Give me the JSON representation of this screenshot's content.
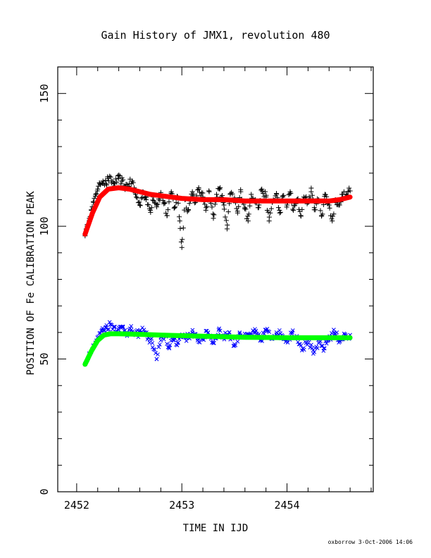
{
  "chart_data": {
    "type": "scatter",
    "title": "Gain History of JMX1, revolution 480",
    "xlabel": "TIME IN IJD",
    "ylabel": "POSITION OF Fe CALIBRATION PEAK",
    "xlim": [
      2451.82,
      2454.82
    ],
    "ylim": [
      0,
      160
    ],
    "xticks": [
      "2452",
      "2453",
      "2454"
    ],
    "yticks": [
      "0",
      "50",
      "100",
      "150"
    ],
    "grid": false,
    "legend": "none",
    "x_range": [
      2452.08,
      2454.6
    ],
    "series": [
      {
        "kind": "points",
        "marker": "+",
        "color": "#000000",
        "x": [
          2452.08,
          2452.1,
          2452.12,
          2452.14,
          2452.16,
          2452.18,
          2452.2,
          2452.22,
          2452.25,
          2452.28,
          2452.3,
          2452.33,
          2452.36,
          2452.4,
          2452.43,
          2452.46,
          2452.5,
          2452.53,
          2452.56,
          2452.6,
          2452.63,
          2452.66,
          2452.7,
          2452.73,
          2452.76,
          2452.8,
          2452.83,
          2452.86,
          2452.9,
          2452.93,
          2452.96,
          2452.98,
          2453.0,
          2453.03,
          2453.06,
          2453.1,
          2453.13,
          2453.16,
          2453.2,
          2453.23,
          2453.26,
          2453.3,
          2453.33,
          2453.36,
          2453.4,
          2453.43,
          2453.46,
          2453.5,
          2453.53,
          2453.56,
          2453.6,
          2453.63,
          2453.66,
          2453.7,
          2453.73,
          2453.76,
          2453.8,
          2453.83,
          2453.86,
          2453.9,
          2453.93,
          2453.96,
          2454.0,
          2454.03,
          2454.06,
          2454.1,
          2454.13,
          2454.16,
          2454.2,
          2454.23,
          2454.26,
          2454.3,
          2454.33,
          2454.36,
          2454.4,
          2454.43,
          2454.46,
          2454.5,
          2454.53,
          2454.56,
          2454.58
        ],
        "y": [
          97,
          100,
          103,
          106,
          109,
          112,
          114,
          116,
          117,
          116,
          118,
          117,
          116,
          118,
          117,
          115,
          116,
          117,
          112,
          108,
          113,
          110,
          106,
          111,
          108,
          112,
          109,
          104,
          113,
          107,
          111,
          102,
          92,
          110,
          106,
          113,
          109,
          114,
          111,
          107,
          113,
          103,
          112,
          114,
          108,
          99,
          112,
          110,
          105,
          113,
          107,
          102,
          112,
          110,
          107,
          114,
          111,
          102,
          109,
          112,
          105,
          111,
          108,
          113,
          106,
          110,
          104,
          111,
          109,
          113,
          107,
          110,
          104,
          112,
          108,
          102,
          110,
          108,
          112,
          111,
          113
        ]
      },
      {
        "kind": "fit",
        "color": "#ff0000",
        "x": [
          2452.08,
          2452.15,
          2452.22,
          2452.3,
          2452.4,
          2452.5,
          2452.6,
          2452.7,
          2452.8,
          2452.9,
          2453.0,
          2453.2,
          2453.4,
          2453.6,
          2453.8,
          2454.0,
          2454.2,
          2454.4,
          2454.5,
          2454.6
        ],
        "y": [
          97,
          105,
          111,
          114,
          114.5,
          114,
          113,
          112,
          111.5,
          111,
          110.5,
          110,
          110,
          109.5,
          109.5,
          109.5,
          109.5,
          109.5,
          110,
          111
        ]
      },
      {
        "kind": "points",
        "marker": "x",
        "color": "#0000ff",
        "x": [
          2452.08,
          2452.12,
          2452.16,
          2452.2,
          2452.24,
          2452.28,
          2452.32,
          2452.36,
          2452.4,
          2452.44,
          2452.48,
          2452.52,
          2452.56,
          2452.6,
          2452.64,
          2452.68,
          2452.72,
          2452.76,
          2452.8,
          2452.84,
          2452.88,
          2452.92,
          2452.96,
          2453.0,
          2453.05,
          2453.1,
          2453.15,
          2453.2,
          2453.25,
          2453.3,
          2453.35,
          2453.4,
          2453.45,
          2453.5,
          2453.55,
          2453.6,
          2453.65,
          2453.7,
          2453.75,
          2453.8,
          2453.85,
          2453.9,
          2453.95,
          2454.0,
          2454.05,
          2454.1,
          2454.15,
          2454.2,
          2454.25,
          2454.3,
          2454.35,
          2454.4,
          2454.45,
          2454.5,
          2454.55,
          2454.6
        ],
        "y": [
          48,
          52,
          55,
          58,
          61,
          62,
          63,
          62,
          61,
          62,
          60,
          61,
          59,
          60,
          61,
          58,
          56,
          50,
          57,
          59,
          54,
          58,
          56,
          59,
          58,
          60,
          57,
          58,
          60,
          56,
          61,
          58,
          60,
          55,
          60,
          58,
          59,
          60,
          57,
          61,
          58,
          60,
          59,
          57,
          60,
          58,
          54,
          57,
          52,
          56,
          54,
          58,
          60,
          57,
          59,
          58
        ]
      },
      {
        "kind": "fit",
        "color": "#00ff00",
        "x": [
          2452.08,
          2452.14,
          2452.2,
          2452.26,
          2452.32,
          2452.4,
          2452.6,
          2452.8,
          2453.0,
          2453.2,
          2453.4,
          2453.6,
          2453.8,
          2454.0,
          2454.2,
          2454.4,
          2454.6
        ],
        "y": [
          48,
          53,
          57,
          59,
          59.5,
          59.5,
          59.3,
          59,
          58.8,
          58.6,
          58.4,
          58.2,
          58.1,
          58,
          58,
          58,
          58
        ]
      }
    ]
  },
  "footer": {
    "credit": "oxborrow  3-Oct-2006 14:06"
  }
}
